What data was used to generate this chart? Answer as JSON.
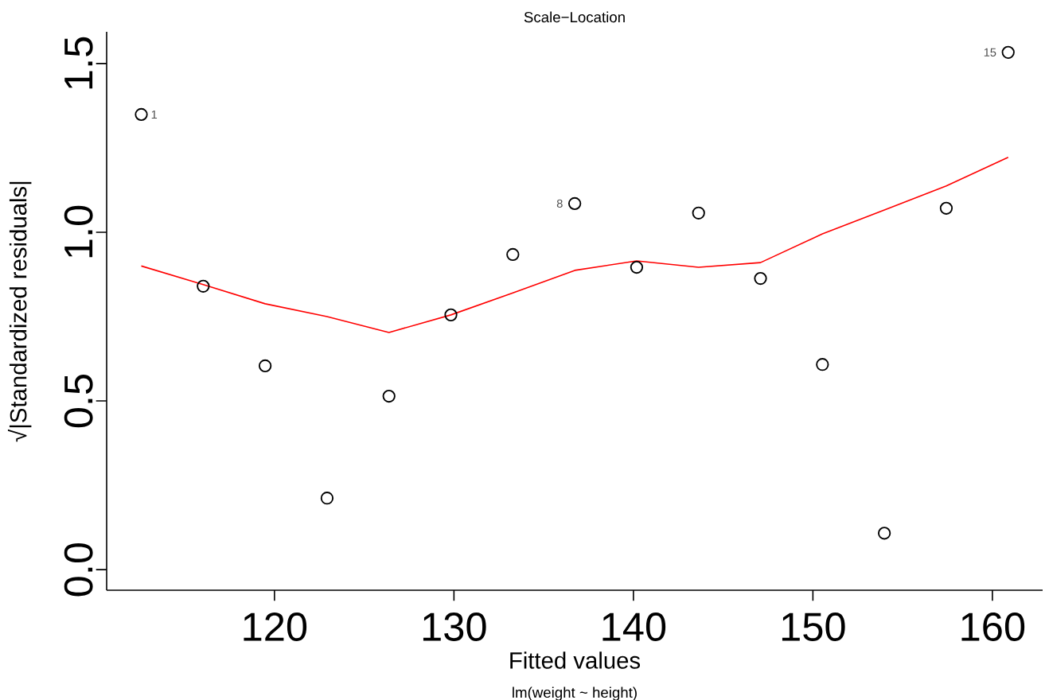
{
  "chart_data": {
    "type": "scatter",
    "title": "Scale−Location",
    "xlabel": "Fitted values",
    "ylabel": "√|Standardized residuals|",
    "annotations": [
      "lm(weight ~ height)",
      {
        "text": "1",
        "x": 112.58,
        "y": 1.349
      },
      {
        "text": "8",
        "x": 136.73,
        "y": 1.085
      },
      {
        "text": "15",
        "x": 160.88,
        "y": 1.533
      }
    ],
    "x": [
      112.58,
      116.03,
      119.48,
      122.93,
      126.38,
      129.83,
      133.28,
      136.73,
      140.18,
      143.63,
      147.08,
      150.53,
      153.98,
      157.43,
      160.88
    ],
    "series": [
      {
        "marker": "circle",
        "color": "#000000",
        "values": [
          1.349,
          0.84,
          0.604,
          0.212,
          0.514,
          0.755,
          0.934,
          1.085,
          0.896,
          1.057,
          0.863,
          0.608,
          0.108,
          1.071,
          1.533
        ]
      },
      {
        "type": "line",
        "color": "#ff0000",
        "values": [
          0.9,
          0.845,
          0.788,
          0.75,
          0.703,
          0.755,
          0.82,
          0.887,
          0.915,
          0.896,
          0.91,
          0.995,
          1.066,
          1.137,
          1.222
        ]
      }
    ],
    "xlim": [
      110.65,
      162.8
    ],
    "ylim": [
      -0.061,
      1.594
    ],
    "xticks": [
      120,
      130,
      140,
      150,
      160
    ],
    "yticks": [
      {
        "value": 0,
        "label": "0.0"
      },
      {
        "value": 0.5,
        "label": "0.5"
      },
      {
        "value": 1,
        "label": "1.0"
      },
      {
        "value": 1.5,
        "label": "1.5"
      }
    ]
  }
}
